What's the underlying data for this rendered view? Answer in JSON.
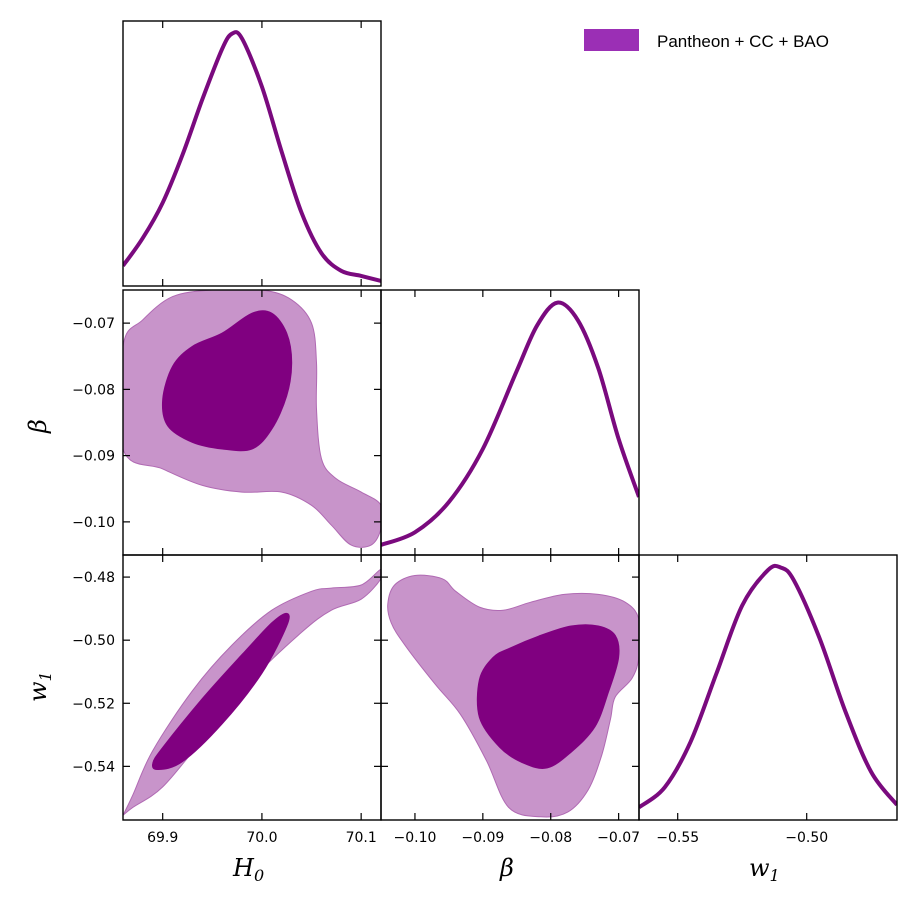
{
  "chart_data": [
    {
      "type": "line",
      "panel": "1D marginal of H_0",
      "parameter": "H_0",
      "x": [
        69.86,
        69.88,
        69.9,
        69.92,
        69.94,
        69.96,
        69.97,
        69.98,
        70.0,
        70.02,
        70.04,
        70.06,
        70.08,
        70.1,
        70.12
      ],
      "y": [
        0.08,
        0.19,
        0.33,
        0.52,
        0.74,
        0.94,
        1.0,
        0.98,
        0.79,
        0.53,
        0.29,
        0.13,
        0.06,
        0.04,
        0.02
      ],
      "xlim": [
        69.86,
        70.12
      ],
      "ylim": [
        0,
        1.05
      ]
    },
    {
      "type": "line",
      "panel": "1D marginal of beta",
      "parameter": "β",
      "x": [
        -0.105,
        -0.1,
        -0.095,
        -0.09,
        -0.085,
        -0.082,
        -0.079,
        -0.076,
        -0.073,
        -0.07,
        -0.067
      ],
      "y": [
        0.04,
        0.09,
        0.21,
        0.42,
        0.73,
        0.91,
        1.0,
        0.93,
        0.74,
        0.46,
        0.23
      ],
      "xlim": [
        -0.105,
        -0.067
      ],
      "ylim": [
        0,
        1.05
      ]
    },
    {
      "type": "line",
      "panel": "1D marginal of w_1",
      "parameter": "w_1",
      "x": [
        -0.565,
        -0.555,
        -0.545,
        -0.535,
        -0.525,
        -0.515,
        -0.51,
        -0.505,
        -0.495,
        -0.485,
        -0.475,
        -0.465
      ],
      "y": [
        0.05,
        0.13,
        0.31,
        0.58,
        0.85,
        0.99,
        1.0,
        0.95,
        0.72,
        0.43,
        0.19,
        0.06
      ],
      "xlim": [
        -0.565,
        -0.465
      ],
      "ylim": [
        0,
        1.05
      ]
    },
    {
      "type": "area",
      "panel": "2D contours beta vs H_0",
      "x_parameter": "H_0",
      "y_parameter": "β",
      "xlim": [
        69.86,
        70.12
      ],
      "ylim": [
        -0.105,
        -0.065
      ],
      "contour_95": [
        [
          69.86,
          -0.0735
        ],
        [
          69.88,
          -0.0695
        ],
        [
          69.91,
          -0.066
        ],
        [
          69.95,
          -0.065
        ],
        [
          70.0,
          -0.065
        ],
        [
          70.03,
          -0.0665
        ],
        [
          70.05,
          -0.07
        ],
        [
          70.055,
          -0.076
        ],
        [
          70.055,
          -0.083
        ],
        [
          70.06,
          -0.0905
        ],
        [
          70.075,
          -0.0935
        ],
        [
          70.1,
          -0.0955
        ],
        [
          70.12,
          -0.0975
        ],
        [
          70.12,
          -0.101
        ],
        [
          70.11,
          -0.1035
        ],
        [
          70.09,
          -0.1035
        ],
        [
          70.07,
          -0.1005
        ],
        [
          70.05,
          -0.0975
        ],
        [
          70.02,
          -0.0955
        ],
        [
          69.98,
          -0.0955
        ],
        [
          69.94,
          -0.0945
        ],
        [
          69.9,
          -0.092
        ],
        [
          69.86,
          -0.089
        ]
      ],
      "contour_68": [
        [
          69.9,
          -0.0815
        ],
        [
          69.91,
          -0.0765
        ],
        [
          69.93,
          -0.0735
        ],
        [
          69.96,
          -0.0715
        ],
        [
          69.99,
          -0.0685
        ],
        [
          70.01,
          -0.0685
        ],
        [
          70.025,
          -0.0715
        ],
        [
          70.03,
          -0.076
        ],
        [
          70.025,
          -0.081
        ],
        [
          70.01,
          -0.086
        ],
        [
          69.99,
          -0.089
        ],
        [
          69.96,
          -0.089
        ],
        [
          69.93,
          -0.088
        ],
        [
          69.905,
          -0.0855
        ]
      ]
    },
    {
      "type": "area",
      "panel": "2D contours w_1 vs H_0",
      "x_parameter": "H_0",
      "y_parameter": "w_1",
      "xlim": [
        69.86,
        70.12
      ],
      "ylim": [
        -0.557,
        -0.473
      ],
      "contour_95": [
        [
          69.86,
          -0.5555
        ],
        [
          69.87,
          -0.549
        ],
        [
          69.89,
          -0.535
        ],
        [
          69.93,
          -0.516
        ],
        [
          69.97,
          -0.5015
        ],
        [
          70.01,
          -0.4905
        ],
        [
          70.05,
          -0.4845
        ],
        [
          70.07,
          -0.4835
        ],
        [
          70.1,
          -0.4825
        ],
        [
          70.12,
          -0.4775
        ],
        [
          70.12,
          -0.4805
        ],
        [
          70.1,
          -0.487
        ],
        [
          70.07,
          -0.4905
        ],
        [
          70.04,
          -0.4975
        ],
        [
          69.99,
          -0.5125
        ],
        [
          69.94,
          -0.5315
        ],
        [
          69.9,
          -0.5465
        ],
        [
          69.87,
          -0.553
        ],
        [
          69.86,
          -0.5555
        ]
      ],
      "contour_68": [
        [
          69.89,
          -0.539
        ],
        [
          69.9,
          -0.534
        ],
        [
          69.94,
          -0.5185
        ],
        [
          69.98,
          -0.5045
        ],
        [
          70.01,
          -0.4945
        ],
        [
          70.025,
          -0.4915
        ],
        [
          70.025,
          -0.4955
        ],
        [
          70.0,
          -0.5105
        ],
        [
          69.96,
          -0.5265
        ],
        [
          69.92,
          -0.5385
        ],
        [
          69.895,
          -0.541
        ]
      ]
    },
    {
      "type": "area",
      "panel": "2D contours w_1 vs beta",
      "x_parameter": "β",
      "y_parameter": "w_1",
      "xlim": [
        -0.105,
        -0.067
      ],
      "ylim": [
        -0.557,
        -0.473
      ],
      "contour_95": [
        [
          -0.104,
          -0.4885
        ],
        [
          -0.103,
          -0.4825
        ],
        [
          -0.1,
          -0.4795
        ],
        [
          -0.096,
          -0.4805
        ],
        [
          -0.094,
          -0.4845
        ],
        [
          -0.0905,
          -0.4895
        ],
        [
          -0.087,
          -0.4905
        ],
        [
          -0.083,
          -0.488
        ],
        [
          -0.078,
          -0.4855
        ],
        [
          -0.073,
          -0.4855
        ],
        [
          -0.069,
          -0.488
        ],
        [
          -0.067,
          -0.4935
        ],
        [
          -0.067,
          -0.505
        ],
        [
          -0.068,
          -0.512
        ],
        [
          -0.0705,
          -0.518
        ],
        [
          -0.0712,
          -0.525
        ],
        [
          -0.0725,
          -0.5365
        ],
        [
          -0.0745,
          -0.5475
        ],
        [
          -0.0775,
          -0.5545
        ],
        [
          -0.0815,
          -0.556
        ],
        [
          -0.0862,
          -0.553
        ],
        [
          -0.0895,
          -0.538
        ],
        [
          -0.0933,
          -0.5235
        ],
        [
          -0.097,
          -0.514
        ],
        [
          -0.1015,
          -0.5015
        ],
        [
          -0.1035,
          -0.4945
        ]
      ],
      "contour_68": [
        [
          -0.0905,
          -0.5125
        ],
        [
          -0.0885,
          -0.5055
        ],
        [
          -0.086,
          -0.5025
        ],
        [
          -0.0815,
          -0.4985
        ],
        [
          -0.077,
          -0.4955
        ],
        [
          -0.073,
          -0.4955
        ],
        [
          -0.0705,
          -0.4985
        ],
        [
          -0.07,
          -0.5055
        ],
        [
          -0.0715,
          -0.5165
        ],
        [
          -0.0735,
          -0.5275
        ],
        [
          -0.077,
          -0.5355
        ],
        [
          -0.0805,
          -0.5405
        ],
        [
          -0.084,
          -0.539
        ],
        [
          -0.0875,
          -0.534
        ],
        [
          -0.0905,
          -0.5245
        ]
      ]
    }
  ],
  "legend": {
    "label": "Pantheon + CC + BAO",
    "color": "#9b2fb5"
  },
  "colors": {
    "line": "#7a0a7e",
    "inner": "#800080",
    "outer": "#c894ca",
    "outer_edge": "#b06ab3"
  },
  "axes": {
    "h0": {
      "label": "H",
      "sub": "0",
      "ticks": [
        "69.9",
        "70.0",
        "70.1"
      ],
      "tick_values": [
        69.9,
        70.0,
        70.1
      ]
    },
    "beta_x": {
      "label": "β",
      "ticks": [
        "−0.10",
        "−0.09",
        "−0.08",
        "−0.07"
      ],
      "tick_values": [
        -0.1,
        -0.09,
        -0.08,
        -0.07
      ]
    },
    "w1_x": {
      "label": "w",
      "sub": "1",
      "ticks": [
        "−0.55",
        "−0.50"
      ],
      "tick_values": [
        -0.55,
        -0.5
      ]
    },
    "beta_y": {
      "label": "β",
      "ticks": [
        "−0.07",
        "−0.08",
        "−0.09",
        "−0.10"
      ],
      "tick_values": [
        -0.07,
        -0.08,
        -0.09,
        -0.1
      ]
    },
    "w1_y": {
      "label": "w",
      "sub": "1",
      "ticks": [
        "−0.48",
        "−0.50",
        "−0.52",
        "−0.54"
      ],
      "tick_values": [
        -0.48,
        -0.5,
        -0.52,
        -0.54
      ]
    }
  }
}
